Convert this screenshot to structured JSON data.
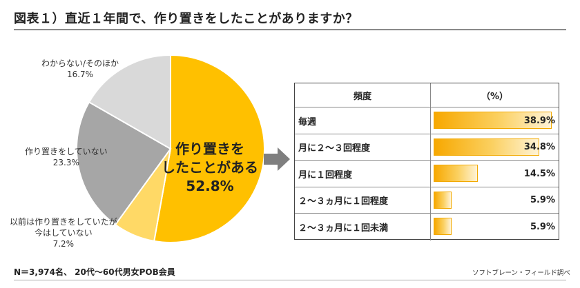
{
  "title": "図表１）直近１年間で、作り置きをしたことがありますか？",
  "colors": {
    "slice_have": "#ffc000",
    "slice_used_to": "#ffd966",
    "slice_not": "#a6a6a6",
    "slice_other": "#d9d9d9",
    "arrow": "#7f7f7f",
    "bar_fill": "#f7a800"
  },
  "chart_data": [
    {
      "type": "pie",
      "start": "12 o'clock",
      "direction": "clockwise",
      "slices": [
        {
          "label_lines": [
            "作り置きを",
            "したことがある"
          ],
          "value": 52.8,
          "value_label": "52.8%",
          "color": "#ffc000"
        },
        {
          "label_lines": [
            "以前は作り置きをしていたが",
            "今はしていない"
          ],
          "value": 7.2,
          "value_label": "7.2%",
          "color": "#ffd966"
        },
        {
          "label_lines": [
            "作り置きをしていない"
          ],
          "value": 23.3,
          "value_label": "23.3%",
          "color": "#a6a6a6"
        },
        {
          "label_lines": [
            "わからない/そのほか"
          ],
          "value": 16.7,
          "value_label": "16.7%",
          "color": "#d9d9d9"
        }
      ]
    },
    {
      "type": "table",
      "columns": [
        "頻度",
        "（%）"
      ],
      "xlim": [
        0,
        40
      ],
      "rows": [
        {
          "label": "毎週",
          "value": 38.9,
          "value_label": "38.9%"
        },
        {
          "label": "月に２～３回程度",
          "value": 34.8,
          "value_label": "34.8%"
        },
        {
          "label": "月に１回程度",
          "value": 14.5,
          "value_label": "14.5%"
        },
        {
          "label": "２～３ヵ月に１回程度",
          "value": 5.9,
          "value_label": "5.9%"
        },
        {
          "label": "２～３ヵ月に１回未満",
          "value": 5.9,
          "value_label": "5.9%"
        }
      ]
    }
  ],
  "footnote": "N＝3,974名、 20代～60代男女POB会員",
  "credit": "ソフトブレーン・フィールド調べ"
}
